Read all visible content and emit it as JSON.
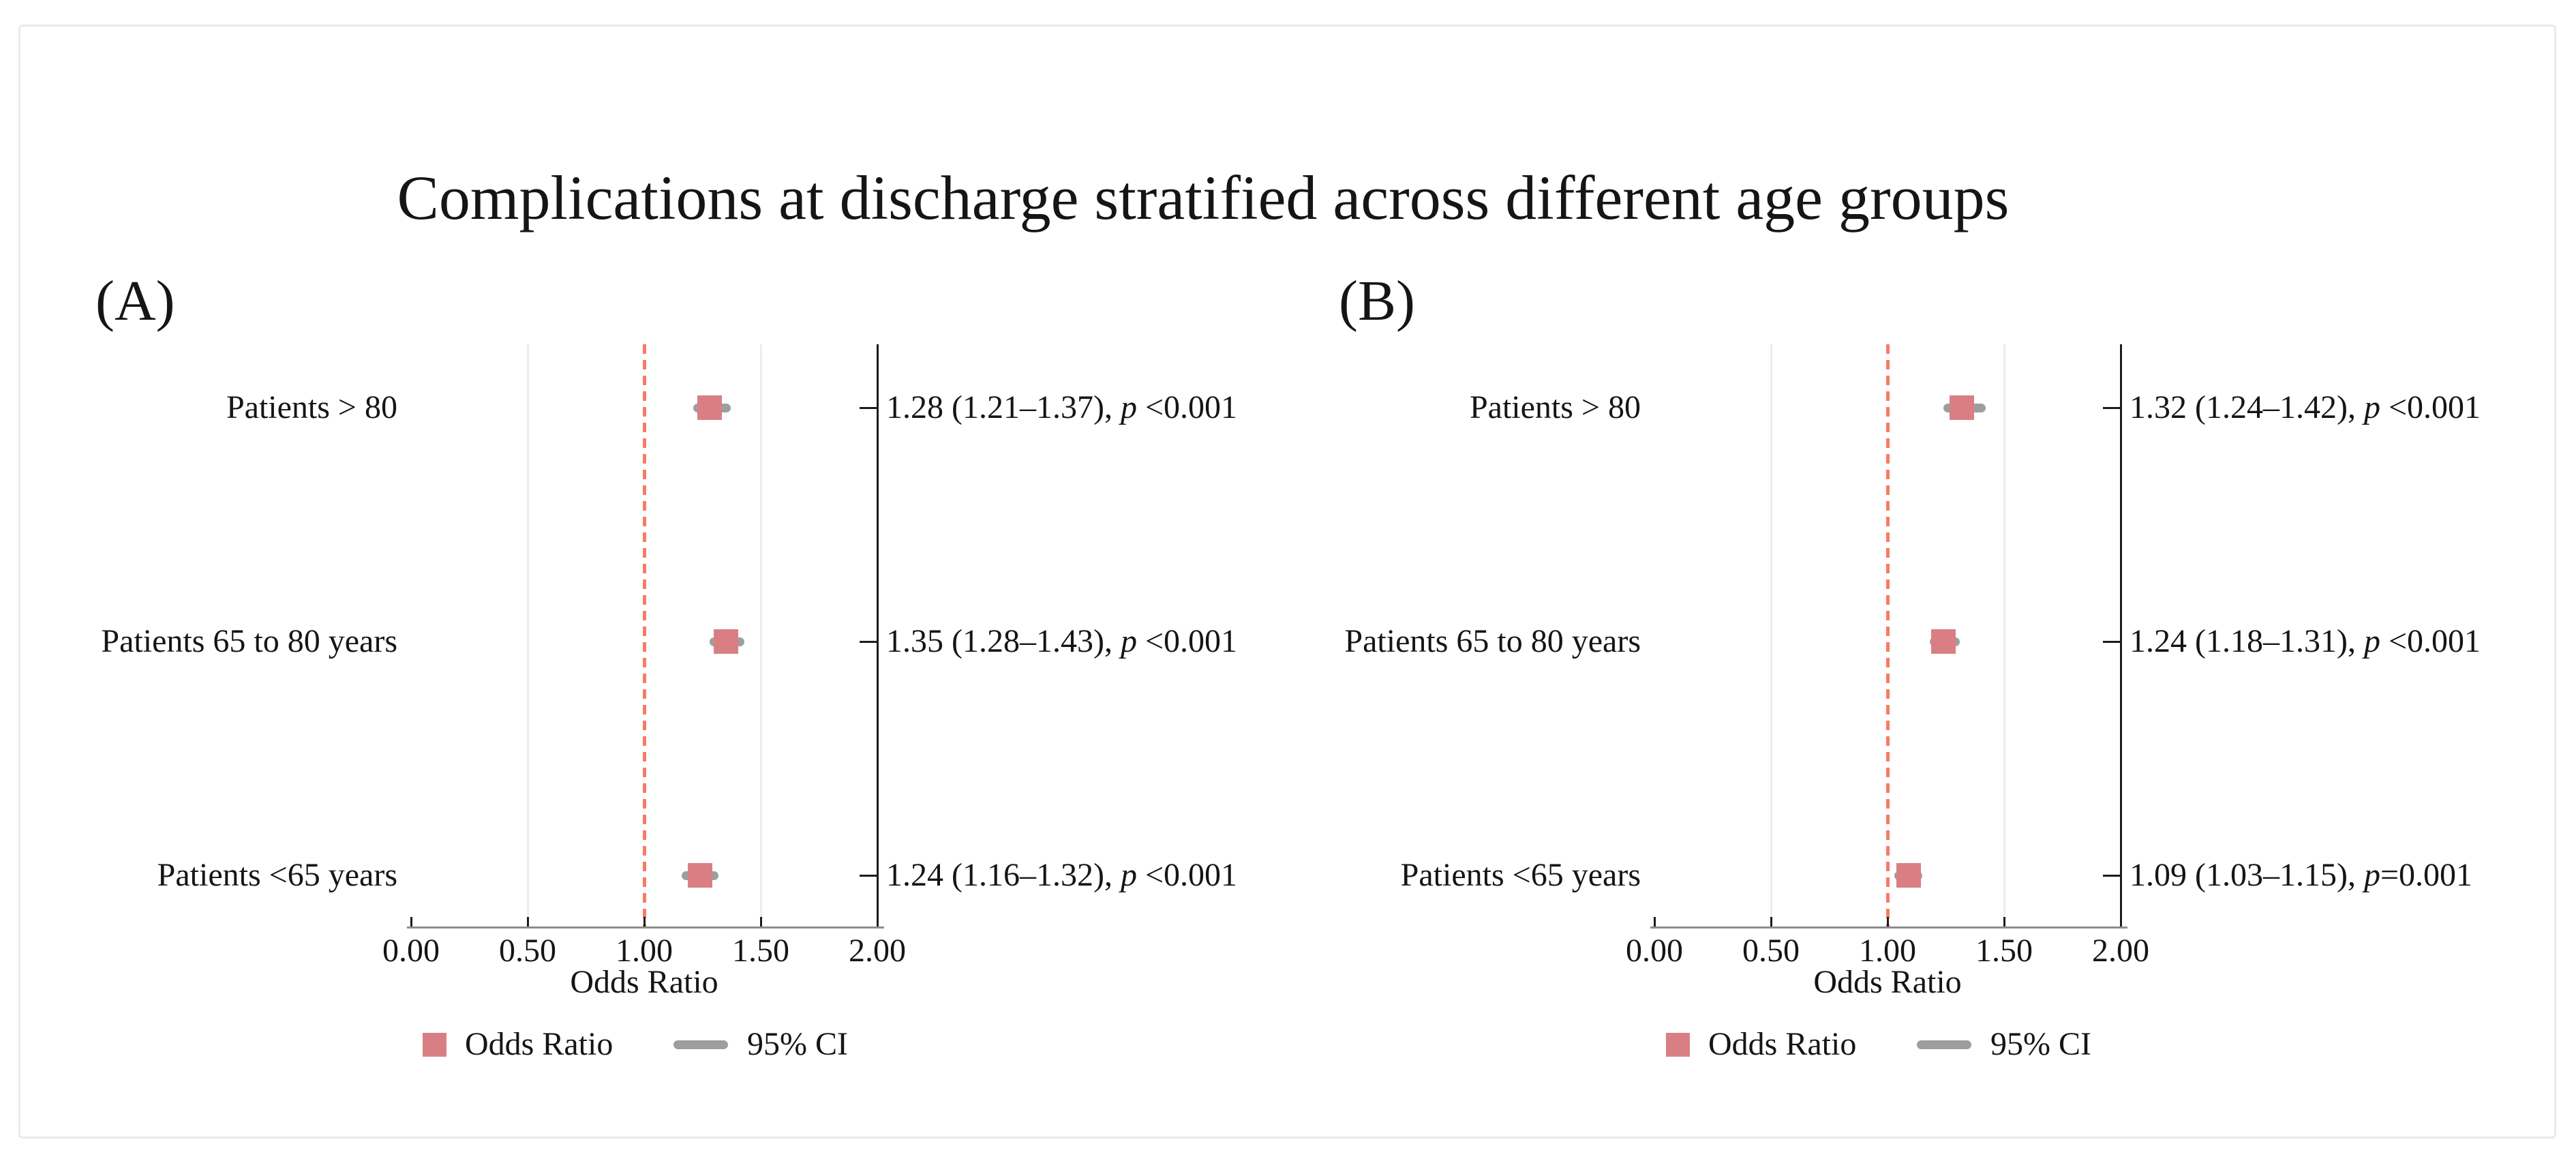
{
  "figure": {
    "title": "Complications at discharge stratified across different age groups",
    "p_label": "p",
    "colors": {
      "marker": "#d97f84",
      "ci": "#9e9e9e",
      "ref_line": "#fa7a64",
      "grid": "#e9edf2",
      "axis_line": "#8a8d91",
      "frame_line": "#1c1c1c",
      "border": "#e7eaee",
      "text": "#151515",
      "background": "#ffffff"
    }
  },
  "chart_data": [
    {
      "type": "scatter",
      "chart_kind": "forest-plot",
      "panel_label": "(A)",
      "xlabel": "Odds Ratio",
      "xlim": [
        0.0,
        2.0
      ],
      "x_tick_labels": [
        "0.00",
        "0.50",
        "1.00",
        "1.50",
        "2.00"
      ],
      "x_tick_values": [
        0.0,
        0.5,
        1.0,
        1.5,
        2.0
      ],
      "ref_line": 1.0,
      "gridlines": [
        0.5,
        1.5
      ],
      "grid": "partial-vertical",
      "legend_position": "bottom",
      "legend": [
        "Odds Ratio",
        "95% CI"
      ],
      "categories": [
        "Patients > 80",
        "Patients 65 to 80 years",
        "Patients <65 years"
      ],
      "rows": [
        {
          "label": "Patients > 80",
          "or": 1.28,
          "ci_low": 1.21,
          "ci_high": 1.37,
          "p": "<0.001",
          "or_ci_text": "1.28 (1.21–1.37), ",
          "p_rest": " <0.001"
        },
        {
          "label": "Patients 65 to 80 years",
          "or": 1.35,
          "ci_low": 1.28,
          "ci_high": 1.43,
          "p": "<0.001",
          "or_ci_text": "1.35 (1.28–1.43), ",
          "p_rest": " <0.001"
        },
        {
          "label": "Patients <65 years",
          "or": 1.24,
          "ci_low": 1.16,
          "ci_high": 1.32,
          "p": "<0.001",
          "or_ci_text": "1.24 (1.16–1.32), ",
          "p_rest": " <0.001"
        }
      ]
    },
    {
      "type": "scatter",
      "chart_kind": "forest-plot",
      "panel_label": "(B)",
      "xlabel": "Odds Ratio",
      "xlim": [
        0.0,
        2.0
      ],
      "x_tick_labels": [
        "0.00",
        "0.50",
        "1.00",
        "1.50",
        "2.00"
      ],
      "x_tick_values": [
        0.0,
        0.5,
        1.0,
        1.5,
        2.0
      ],
      "ref_line": 1.0,
      "gridlines": [
        0.5,
        1.5
      ],
      "grid": "partial-vertical",
      "legend_position": "bottom",
      "legend": [
        "Odds Ratio",
        "95% CI"
      ],
      "categories": [
        "Patients > 80",
        "Patients 65 to 80 years",
        "Patients <65 years"
      ],
      "rows": [
        {
          "label": "Patients > 80",
          "or": 1.32,
          "ci_low": 1.24,
          "ci_high": 1.42,
          "p": "<0.001",
          "or_ci_text": "1.32 (1.24–1.42), ",
          "p_rest": " <0.001"
        },
        {
          "label": "Patients 65 to 80 years",
          "or": 1.24,
          "ci_low": 1.18,
          "ci_high": 1.31,
          "p": "<0.001",
          "or_ci_text": "1.24 (1.18–1.31), ",
          "p_rest": " <0.001"
        },
        {
          "label": "Patients <65 years",
          "or": 1.09,
          "ci_low": 1.03,
          "ci_high": 1.15,
          "p": "=0.001",
          "or_ci_text": "1.09 (1.03–1.15), ",
          "p_rest": "=0.001"
        }
      ]
    }
  ]
}
